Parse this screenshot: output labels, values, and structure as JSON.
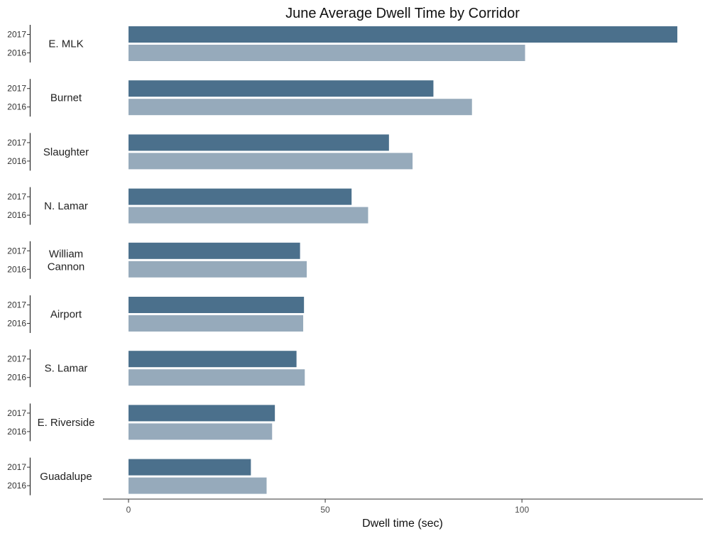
{
  "chart_data": {
    "type": "bar",
    "orientation": "horizontal",
    "title": "June Average Dwell Time by Corridor",
    "xlabel": "Dwell time (sec)",
    "ylabel": "",
    "xlim": [
      -6.5,
      146
    ],
    "xticks": [
      0,
      50,
      100
    ],
    "grid": false,
    "legend": "none",
    "categories": [
      "E. MLK",
      "Burnet",
      "Slaughter",
      "N. Lamar",
      "William Cannon",
      "Airport",
      "S. Lamar",
      "E. Riverside",
      "Guadalupe"
    ],
    "category_lines": [
      [
        "E. MLK"
      ],
      [
        "Burnet"
      ],
      [
        "Slaughter"
      ],
      [
        "N. Lamar"
      ],
      [
        "William",
        "Cannon"
      ],
      [
        "Airport"
      ],
      [
        "S. Lamar"
      ],
      [
        "E. Riverside"
      ],
      [
        "Guadalupe"
      ]
    ],
    "series": [
      {
        "name": "2017",
        "color": "#4b708c",
        "values": [
          139.5,
          77.5,
          66.2,
          56.7,
          43.6,
          44.6,
          42.7,
          37.2,
          31.1
        ]
      },
      {
        "name": "2016",
        "color": "#96aabb",
        "values": [
          100.8,
          87.3,
          72.2,
          60.9,
          45.3,
          44.4,
          44.8,
          36.5,
          35.1
        ]
      }
    ]
  }
}
